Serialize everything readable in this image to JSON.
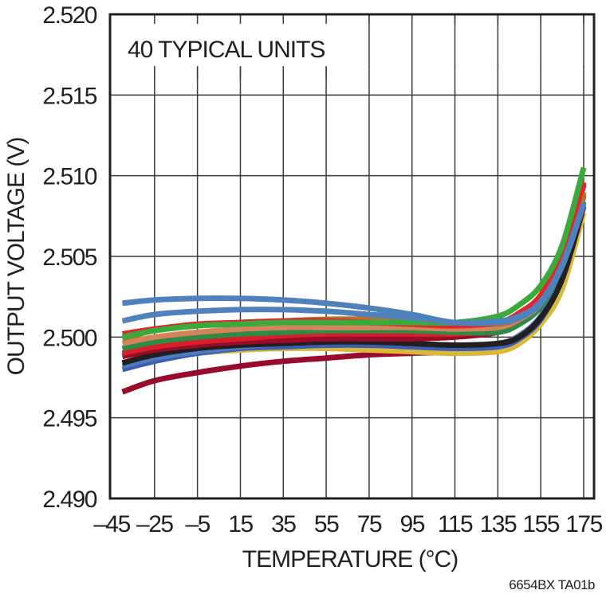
{
  "chart_data": {
    "type": "line",
    "title": "",
    "annotation": "40 TYPICAL UNITS",
    "xlabel": "TEMPERATURE (°C)",
    "ylabel": "OUTPUT VOLTAGE (V)",
    "figure_id": "6654BX TA01b",
    "xlim": [
      -45,
      175
    ],
    "ylim": [
      2.49,
      2.52
    ],
    "grid": true,
    "legend": "none",
    "x_ticks": [
      -45,
      -25,
      -5,
      15,
      35,
      55,
      75,
      95,
      115,
      135,
      155,
      175
    ],
    "x_tick_labels": [
      "–45",
      "–25",
      "–5",
      "15",
      "35",
      "55",
      "75",
      "95",
      "115",
      "135",
      "155",
      "175"
    ],
    "y_ticks": [
      2.49,
      2.495,
      2.5,
      2.505,
      2.51,
      2.515,
      2.52
    ],
    "y_tick_labels": [
      "2.490",
      "2.495",
      "2.500",
      "2.505",
      "2.510",
      "2.515",
      "2.520"
    ],
    "x": [
      -40,
      -25,
      -5,
      15,
      35,
      55,
      75,
      95,
      115,
      135,
      145,
      155,
      165,
      175
    ],
    "series": [
      {
        "name": "unit-blue-top",
        "color": "#4f81bd",
        "values": [
          2.5021,
          2.5023,
          2.5024,
          2.5024,
          2.5023,
          2.5021,
          2.5018,
          2.5014,
          2.5009,
          2.501,
          2.5013,
          2.5022,
          2.5045,
          2.5083
        ]
      },
      {
        "name": "unit-blue-2",
        "color": "#4f81bd",
        "values": [
          2.501,
          2.5014,
          2.5016,
          2.5017,
          2.5017,
          2.5016,
          2.5014,
          2.5012,
          2.5009,
          2.5009,
          2.5012,
          2.5021,
          2.5044,
          2.5082
        ]
      },
      {
        "name": "unit-green-bright",
        "color": "#3aaa3a",
        "values": [
          2.5,
          2.5004,
          2.5007,
          2.5008,
          2.5009,
          2.5009,
          2.5009,
          2.5009,
          2.5009,
          2.5013,
          2.502,
          2.5032,
          2.5057,
          2.5105
        ]
      },
      {
        "name": "unit-red-1",
        "color": "#e2262e",
        "values": [
          2.5002,
          2.5005,
          2.5008,
          2.5009,
          2.501,
          2.501,
          2.5009,
          2.5008,
          2.5007,
          2.5009,
          2.5015,
          2.5026,
          2.5052,
          2.5096
        ]
      },
      {
        "name": "unit-brown",
        "color": "#b8732f",
        "values": [
          2.4999,
          2.5004,
          2.5007,
          2.5009,
          2.501,
          2.5011,
          2.5011,
          2.501,
          2.5009,
          2.5008,
          2.5012,
          2.5022,
          2.5048,
          2.509
        ]
      },
      {
        "name": "unit-tan",
        "color": "#d4845a",
        "values": [
          2.4996,
          2.5,
          2.5003,
          2.5005,
          2.5006,
          2.5006,
          2.5006,
          2.5006,
          2.5005,
          2.5006,
          2.5011,
          2.5021,
          2.5047,
          2.5089
        ]
      },
      {
        "name": "unit-green-dark",
        "color": "#2e8b45",
        "values": [
          2.4993,
          2.4997,
          2.5,
          2.5002,
          2.5003,
          2.5004,
          2.5004,
          2.5004,
          2.5003,
          2.5003,
          2.5008,
          2.5019,
          2.5045,
          2.5087
        ]
      },
      {
        "name": "unit-red-2",
        "color": "#d7212a",
        "values": [
          2.499,
          2.4994,
          2.4997,
          2.4999,
          2.5001,
          2.5002,
          2.5002,
          2.5002,
          2.5002,
          2.5004,
          2.501,
          2.5021,
          2.5048,
          2.5094
        ]
      },
      {
        "name": "unit-maroon-1",
        "color": "#9a0a2a",
        "values": [
          2.4988,
          2.4992,
          2.4995,
          2.4997,
          2.4998,
          2.4999,
          2.4999,
          2.4999,
          2.5,
          2.5003,
          2.5009,
          2.502,
          2.5047,
          2.5095
        ]
      },
      {
        "name": "unit-black",
        "color": "#231f20",
        "values": [
          2.4984,
          2.4989,
          2.4993,
          2.4995,
          2.4996,
          2.4997,
          2.4997,
          2.4996,
          2.4995,
          2.4996,
          2.5,
          2.5012,
          2.5036,
          2.5081
        ]
      },
      {
        "name": "unit-blue-3",
        "color": "#4a7bc4",
        "values": [
          2.4982,
          2.4987,
          2.4991,
          2.4994,
          2.4996,
          2.4997,
          2.4997,
          2.4996,
          2.4995,
          2.4996,
          2.5001,
          2.5013,
          2.5038,
          2.5084
        ]
      },
      {
        "name": "unit-blue-dark",
        "color": "#3b5fb0",
        "values": [
          2.498,
          2.4985,
          2.499,
          2.4993,
          2.4994,
          2.4995,
          2.4995,
          2.4994,
          2.4993,
          2.4994,
          2.4999,
          2.5011,
          2.5037,
          2.5083
        ]
      },
      {
        "name": "unit-gold",
        "color": "#d9b83a",
        "values": [
          2.4984,
          2.4987,
          2.499,
          2.4992,
          2.4993,
          2.4993,
          2.4992,
          2.4991,
          2.499,
          2.4991,
          2.4996,
          2.5008,
          2.503,
          2.5077
        ]
      },
      {
        "name": "unit-maroon-low",
        "color": "#9a0a2a",
        "values": [
          2.4966,
          2.4973,
          2.4978,
          2.4982,
          2.4985,
          2.4987,
          2.4989,
          2.499,
          2.4991,
          2.4994,
          2.5,
          2.5013,
          2.504,
          2.5088
        ]
      }
    ]
  }
}
